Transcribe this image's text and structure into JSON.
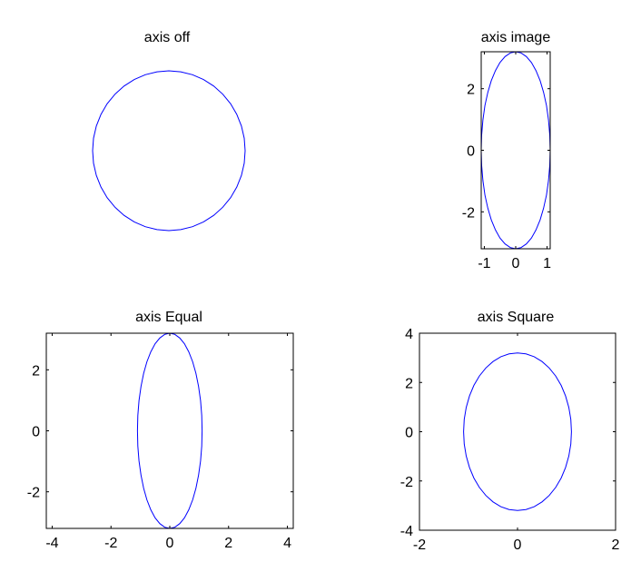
{
  "chart_data": [
    {
      "type": "line",
      "title": "axis off",
      "axis_visible": false,
      "series": [
        {
          "shape": "ellipse",
          "x_radius": 1.0,
          "y_radius": 1.0,
          "color": "#0000ff"
        }
      ]
    },
    {
      "type": "line",
      "title": "axis image",
      "axis_visible": true,
      "xlim": [
        -1.1,
        1.1
      ],
      "ylim": [
        -3.2,
        3.2
      ],
      "xticks": [
        -1,
        0,
        1
      ],
      "xtick_labels": [
        "-1",
        "0",
        "1"
      ],
      "yticks": [
        -2,
        0,
        2
      ],
      "ytick_labels": [
        "-2",
        "0",
        "2"
      ],
      "series": [
        {
          "shape": "ellipse",
          "x_radius": 1.1,
          "y_radius": 3.2,
          "color": "#0000ff"
        }
      ]
    },
    {
      "type": "line",
      "title": "axis Equal",
      "axis_visible": true,
      "xlim": [
        -4.2,
        4.2
      ],
      "ylim": [
        -3.2,
        3.2
      ],
      "xticks": [
        -4,
        -2,
        0,
        2,
        4
      ],
      "xtick_labels": [
        "-4",
        "-2",
        "0",
        "2",
        "4"
      ],
      "yticks": [
        -2,
        0,
        2
      ],
      "ytick_labels": [
        "-2",
        "0",
        "2"
      ],
      "series": [
        {
          "shape": "ellipse",
          "x_radius": 1.1,
          "y_radius": 3.2,
          "color": "#0000ff"
        }
      ]
    },
    {
      "type": "line",
      "title": "axis Square",
      "axis_visible": true,
      "xlim": [
        -2,
        2
      ],
      "ylim": [
        -4,
        4
      ],
      "xticks": [
        -2,
        0,
        2
      ],
      "xtick_labels": [
        "-2",
        "0",
        "2"
      ],
      "yticks": [
        -4,
        -2,
        0,
        2,
        4
      ],
      "ytick_labels": [
        "-4",
        "-2",
        "0",
        "2",
        "4"
      ],
      "series": [
        {
          "shape": "ellipse",
          "x_radius": 1.1,
          "y_radius": 3.2,
          "color": "#0000ff"
        }
      ]
    }
  ]
}
